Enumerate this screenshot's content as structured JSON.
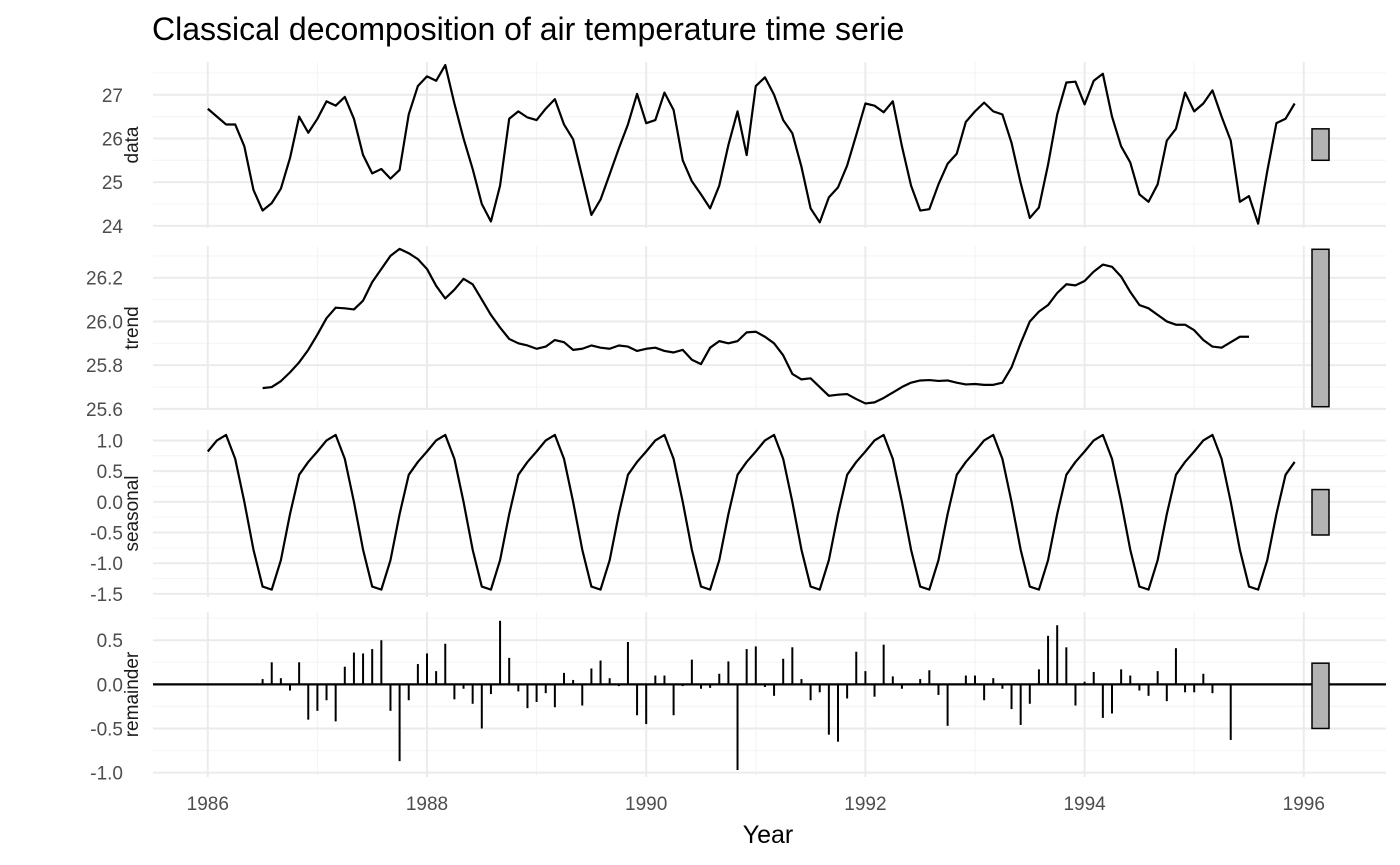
{
  "chart_data": {
    "type": "line",
    "title": "Classical decomposition of air temperature time serie",
    "xlabel": "Year",
    "xlim": [
      1985.5,
      1996.75
    ],
    "x_ticks": [
      1986,
      1988,
      1990,
      1992,
      1994,
      1996
    ],
    "x_tick_labels": [
      "1986",
      "1988",
      "1990",
      "1992",
      "1994",
      "1996"
    ],
    "x_start": 1986.0,
    "x_step": 0.083333,
    "grid": true,
    "legend": "none",
    "colors": {
      "line": "#000000",
      "grid_major": "#ebebeb",
      "grid_minor": "#f5f5f5",
      "scale_bar": "#b3b3b3"
    },
    "panels": [
      {
        "name": "data",
        "geom": "line",
        "ylim": [
          23.95,
          27.75
        ],
        "y_ticks": [
          24,
          25,
          26,
          27
        ],
        "y_tick_labels": [
          "24",
          "25",
          "26",
          "27"
        ],
        "scale_bar": [
          25.5,
          26.22
        ],
        "values": [
          26.68,
          26.5,
          26.32,
          26.32,
          25.82,
          24.82,
          24.35,
          24.52,
          24.85,
          25.55,
          26.5,
          26.13,
          26.45,
          26.85,
          26.75,
          26.95,
          26.45,
          25.62,
          25.2,
          25.3,
          25.08,
          25.28,
          26.55,
          27.2,
          27.42,
          27.32,
          27.68,
          26.8,
          26.0,
          25.3,
          24.5,
          24.1,
          24.92,
          26.45,
          26.62,
          26.48,
          26.42,
          26.68,
          26.9,
          26.32,
          25.98,
          25.12,
          24.25,
          24.6,
          25.18,
          25.77,
          26.32,
          27.02,
          26.35,
          26.42,
          27.05,
          26.65,
          25.5,
          25.02,
          24.72,
          24.4,
          24.92,
          25.85,
          26.62,
          25.62,
          27.2,
          27.4,
          27.0,
          26.42,
          26.12,
          25.35,
          24.4,
          24.08,
          24.65,
          24.88,
          25.38,
          26.08,
          26.8,
          26.75,
          26.6,
          26.85,
          25.82,
          24.92,
          24.35,
          24.38,
          24.95,
          25.42,
          25.65,
          26.38,
          26.62,
          26.82,
          26.62,
          26.55,
          25.9,
          24.98,
          24.18,
          24.42,
          25.4,
          26.55,
          27.28,
          27.3,
          26.78,
          27.32,
          27.48,
          26.5,
          25.82,
          25.45,
          24.72,
          24.55,
          24.95,
          25.95,
          26.22,
          27.05,
          26.62,
          26.8,
          27.1,
          26.5,
          25.95,
          24.55,
          24.68,
          24.05,
          25.25,
          26.35,
          26.45,
          26.8
        ]
      },
      {
        "name": "trend",
        "geom": "line",
        "ylim": [
          25.595,
          26.345
        ],
        "y_ticks": [
          25.6,
          25.8,
          26.0,
          26.2
        ],
        "y_tick_labels": [
          "25.6",
          "25.8",
          "26.0",
          "26.2"
        ],
        "scale_bar": [
          25.61,
          26.33
        ],
        "values": [
          null,
          null,
          null,
          null,
          null,
          null,
          25.695,
          25.7,
          25.727,
          25.767,
          25.813,
          25.87,
          25.94,
          26.015,
          26.063,
          26.06,
          26.055,
          26.095,
          26.18,
          26.24,
          26.3,
          26.332,
          26.312,
          26.285,
          26.24,
          26.163,
          26.105,
          26.145,
          26.195,
          26.17,
          26.1,
          26.03,
          25.972,
          25.92,
          25.9,
          25.89,
          25.875,
          25.885,
          25.915,
          25.905,
          25.87,
          25.875,
          25.89,
          25.88,
          25.875,
          25.89,
          25.885,
          25.865,
          25.875,
          25.88,
          25.865,
          25.858,
          25.87,
          25.825,
          25.805,
          25.88,
          25.91,
          25.9,
          25.91,
          25.95,
          25.953,
          25.93,
          25.9,
          25.845,
          25.76,
          25.735,
          25.74,
          25.7,
          25.66,
          25.665,
          25.668,
          25.645,
          25.625,
          25.63,
          25.65,
          25.675,
          25.7,
          25.72,
          25.73,
          25.732,
          25.728,
          25.73,
          25.72,
          25.712,
          25.714,
          25.71,
          25.71,
          25.72,
          25.79,
          25.9,
          26.0,
          26.045,
          26.075,
          26.13,
          26.17,
          26.165,
          26.185,
          26.228,
          26.26,
          26.25,
          26.205,
          26.135,
          26.075,
          26.06,
          26.03,
          26.0,
          25.985,
          25.985,
          25.96,
          25.915,
          25.885,
          25.88,
          25.905,
          25.93,
          25.93,
          null,
          null,
          null,
          null,
          null
        ]
      },
      {
        "name": "seasonal",
        "geom": "line",
        "ylim": [
          -1.55,
          1.17
        ],
        "y_ticks": [
          -1.5,
          -1.0,
          -0.5,
          0.0,
          0.5,
          1.0
        ],
        "y_tick_labels": [
          "-1.5",
          "-1.0",
          "-0.5",
          "0.0",
          "0.5",
          "1.0"
        ],
        "scale_bar": [
          -0.54,
          0.2
        ],
        "values": [
          0.82,
          1.0,
          1.09,
          0.7,
          0.0,
          -0.78,
          -1.38,
          -1.43,
          -0.95,
          -0.2,
          0.44,
          0.65,
          0.82,
          1.0,
          1.09,
          0.7,
          0.0,
          -0.78,
          -1.38,
          -1.43,
          -0.95,
          -0.2,
          0.44,
          0.65,
          0.82,
          1.0,
          1.09,
          0.7,
          0.0,
          -0.78,
          -1.38,
          -1.43,
          -0.95,
          -0.2,
          0.44,
          0.65,
          0.82,
          1.0,
          1.09,
          0.7,
          0.0,
          -0.78,
          -1.38,
          -1.43,
          -0.95,
          -0.2,
          0.44,
          0.65,
          0.82,
          1.0,
          1.09,
          0.7,
          0.0,
          -0.78,
          -1.38,
          -1.43,
          -0.95,
          -0.2,
          0.44,
          0.65,
          0.82,
          1.0,
          1.09,
          0.7,
          0.0,
          -0.78,
          -1.38,
          -1.43,
          -0.95,
          -0.2,
          0.44,
          0.65,
          0.82,
          1.0,
          1.09,
          0.7,
          0.0,
          -0.78,
          -1.38,
          -1.43,
          -0.95,
          -0.2,
          0.44,
          0.65,
          0.82,
          1.0,
          1.09,
          0.7,
          0.0,
          -0.78,
          -1.38,
          -1.43,
          -0.95,
          -0.2,
          0.44,
          0.65,
          0.82,
          1.0,
          1.09,
          0.7,
          0.0,
          -0.78,
          -1.38,
          -1.43,
          -0.95,
          -0.2,
          0.44,
          0.65,
          0.82,
          1.0,
          1.09,
          0.7,
          0.0,
          -0.78,
          -1.38,
          -1.43,
          -0.95,
          -0.2,
          0.44,
          0.65
        ]
      },
      {
        "name": "remainder",
        "geom": "bar",
        "ylim": [
          -1.05,
          0.82
        ],
        "y_ticks": [
          -1.0,
          -0.5,
          0.0,
          0.5
        ],
        "y_tick_labels": [
          "-1.0",
          "-0.5",
          "0.0",
          "0.5"
        ],
        "scale_bar": [
          -0.5,
          0.24
        ],
        "values": [
          null,
          null,
          null,
          null,
          null,
          null,
          0.06,
          0.25,
          0.07,
          -0.07,
          0.25,
          -0.4,
          -0.3,
          -0.18,
          -0.42,
          0.2,
          0.36,
          0.35,
          0.4,
          0.5,
          -0.3,
          -0.87,
          -0.18,
          0.23,
          0.35,
          0.15,
          0.46,
          -0.17,
          -0.05,
          -0.22,
          -0.5,
          -0.11,
          0.72,
          0.3,
          -0.08,
          -0.27,
          -0.2,
          -0.1,
          -0.26,
          0.13,
          0.05,
          -0.24,
          0.18,
          0.27,
          0.07,
          -0.02,
          0.48,
          -0.35,
          -0.45,
          0.1,
          0.1,
          -0.35,
          -0.02,
          0.28,
          -0.05,
          -0.04,
          0.12,
          0.26,
          -0.97,
          0.4,
          0.43,
          -0.03,
          -0.13,
          0.29,
          0.42,
          0.06,
          -0.18,
          -0.09,
          -0.57,
          -0.65,
          -0.16,
          0.37,
          0.15,
          -0.14,
          0.45,
          0.09,
          -0.05,
          0.01,
          0.06,
          0.16,
          -0.12,
          -0.47,
          0.01,
          0.1,
          0.1,
          -0.18,
          0.07,
          -0.05,
          -0.28,
          -0.46,
          -0.22,
          0.17,
          0.55,
          0.67,
          0.42,
          -0.24,
          0.03,
          0.14,
          -0.38,
          -0.33,
          0.17,
          0.1,
          -0.07,
          -0.13,
          0.15,
          -0.19,
          0.41,
          -0.09,
          -0.09,
          0.12,
          -0.1,
          0.0,
          -0.63,
          null,
          null,
          null,
          null,
          null
        ]
      }
    ]
  }
}
